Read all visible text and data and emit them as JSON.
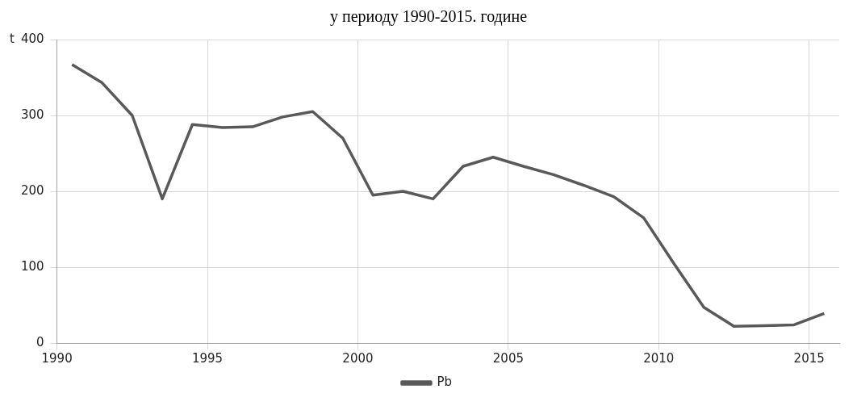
{
  "chart_data": {
    "type": "line",
    "title": "у периоду 1990-2015. године",
    "ylabel": "t",
    "x": [
      1990.5,
      1991.5,
      1992.5,
      1993.5,
      1994.5,
      1995.5,
      1996.5,
      1997.5,
      1998.5,
      1999.5,
      2000.5,
      2001.5,
      2002.5,
      2003.5,
      2004.5,
      2005.5,
      2006.5,
      2007.5,
      2008.5,
      2009.5,
      2010.5,
      2011.5,
      2012.5,
      2013.5,
      2014.5,
      2015.5
    ],
    "series": [
      {
        "name": "Pb",
        "color": "#595959",
        "values": [
          367,
          343,
          300,
          190,
          288,
          284,
          285,
          298,
          305,
          270,
          195,
          200,
          190,
          233,
          245,
          233,
          222,
          208,
          193,
          165,
          105,
          47,
          22,
          23,
          24,
          39
        ]
      }
    ],
    "xlim": [
      1990,
      2016
    ],
    "xticks": [
      1990,
      1995,
      2000,
      2005,
      2010,
      2015
    ],
    "ylim": [
      0,
      400
    ],
    "yticks": [
      0,
      100,
      200,
      300,
      400
    ],
    "grid": true,
    "legend": "bottom",
    "marker": "none",
    "line_style": "solid"
  }
}
